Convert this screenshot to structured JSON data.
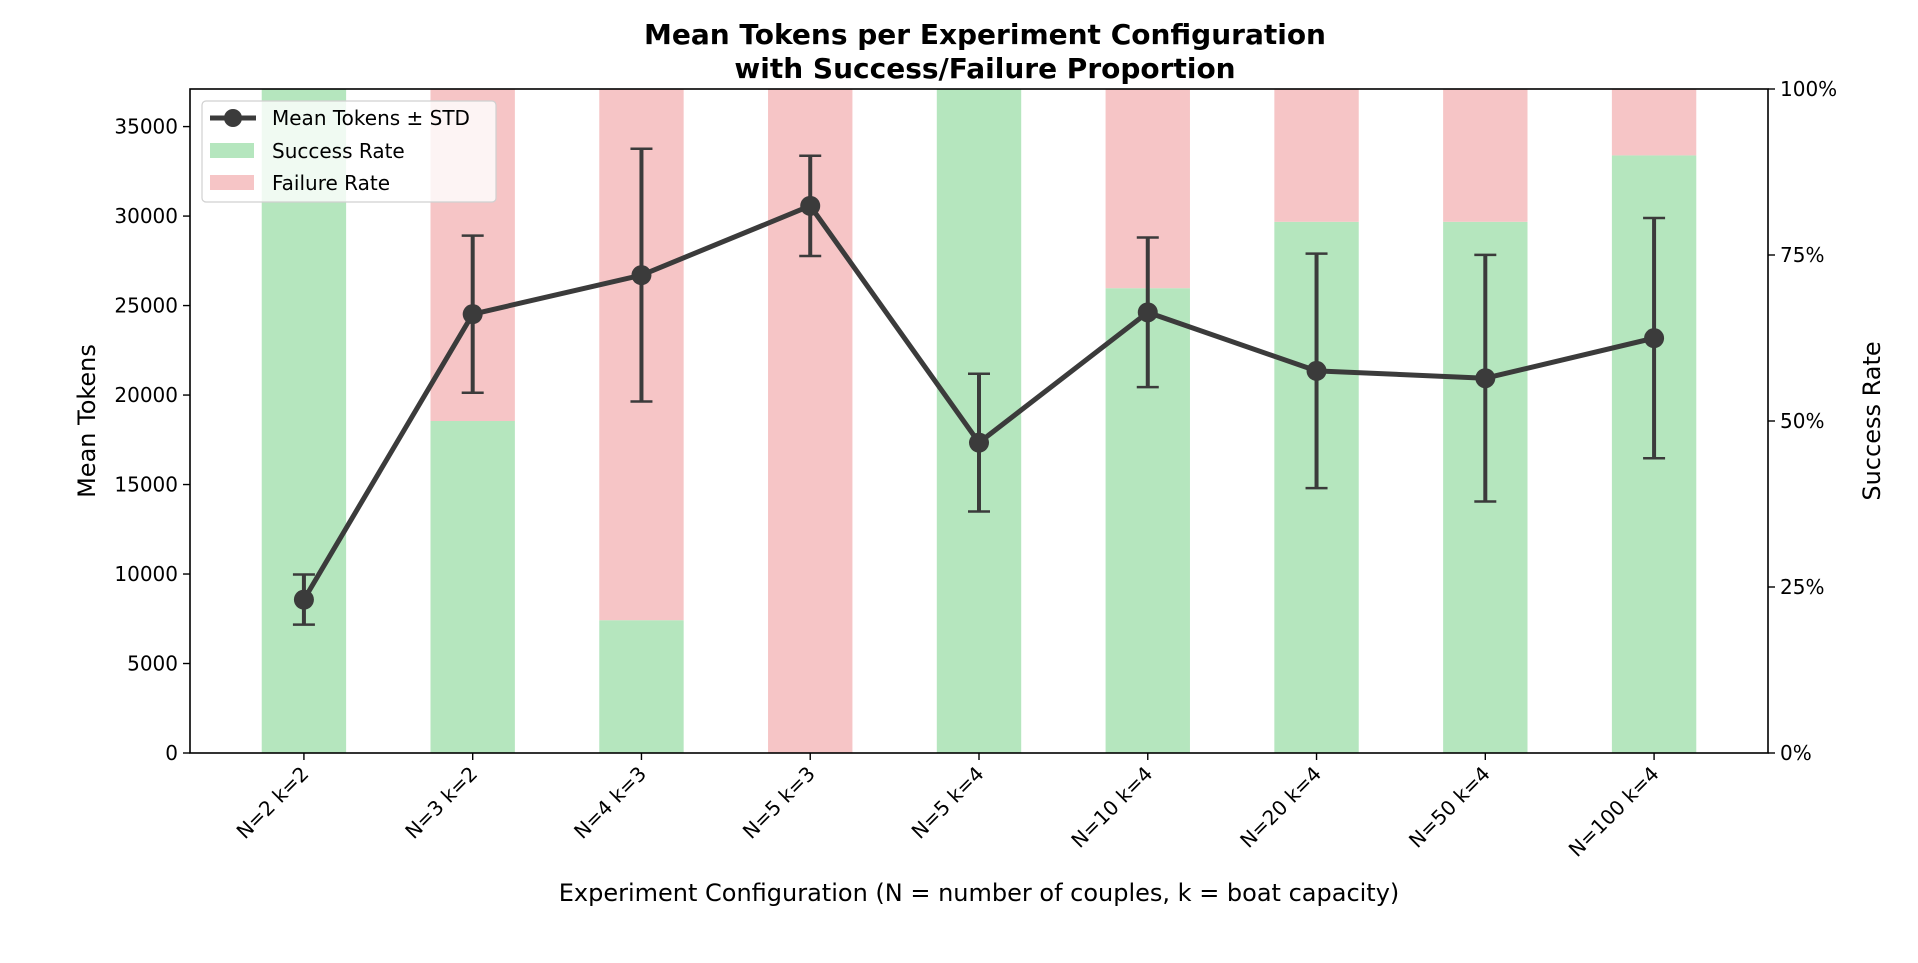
{
  "chart_data": {
    "type": "bar",
    "title": [
      "Mean Tokens per Experiment Configuration",
      "with Success/Failure Proportion"
    ],
    "xlabel": "Experiment Configuration (N = number of couples, k = boat capacity)",
    "ylabel": "Mean Tokens",
    "ylabel_right": "Success Rate",
    "categories": [
      "N=2 k=2",
      "N=3 k=2",
      "N=4 k=3",
      "N=5 k=3",
      "N=5 k=4",
      "N=10 k=4",
      "N=20 k=4",
      "N=50 k=4",
      "N=100 k=4"
    ],
    "ylim": [
      0,
      37100
    ],
    "yticks": [
      0,
      5000,
      10000,
      15000,
      20000,
      25000,
      30000,
      35000
    ],
    "ylim_right": [
      0,
      1
    ],
    "yticks_right": [
      0,
      0.25,
      0.5,
      0.75,
      1.0
    ],
    "yticks_right_labels": [
      "0%",
      "25%",
      "50%",
      "75%",
      "100%"
    ],
    "grid": false,
    "legend_position": "top-left",
    "colors": {
      "success": "#b5e6be",
      "failure": "#f6c5c6",
      "line": "#3b3b3b"
    },
    "series": [
      {
        "name": "Mean Tokens ± STD",
        "type": "line",
        "axis": "left",
        "values": [
          8570,
          24520,
          26700,
          30570,
          17340,
          24620,
          21350,
          20940,
          23180
        ],
        "std": [
          1400,
          4390,
          7060,
          2800,
          3850,
          4180,
          6550,
          6890,
          6710
        ]
      },
      {
        "name": "Success Rate",
        "type": "bar",
        "axis": "right",
        "values": [
          1.0,
          0.5,
          0.2,
          0.0,
          1.0,
          0.7,
          0.8,
          0.8,
          0.9
        ]
      },
      {
        "name": "Failure Rate",
        "type": "bar",
        "axis": "right",
        "stacked_on": "Success Rate",
        "values": [
          0.0,
          0.5,
          0.8,
          1.0,
          0.0,
          0.3,
          0.2,
          0.2,
          0.1
        ]
      }
    ],
    "legend": [
      "Mean Tokens ± STD",
      "Success Rate",
      "Failure Rate"
    ]
  }
}
